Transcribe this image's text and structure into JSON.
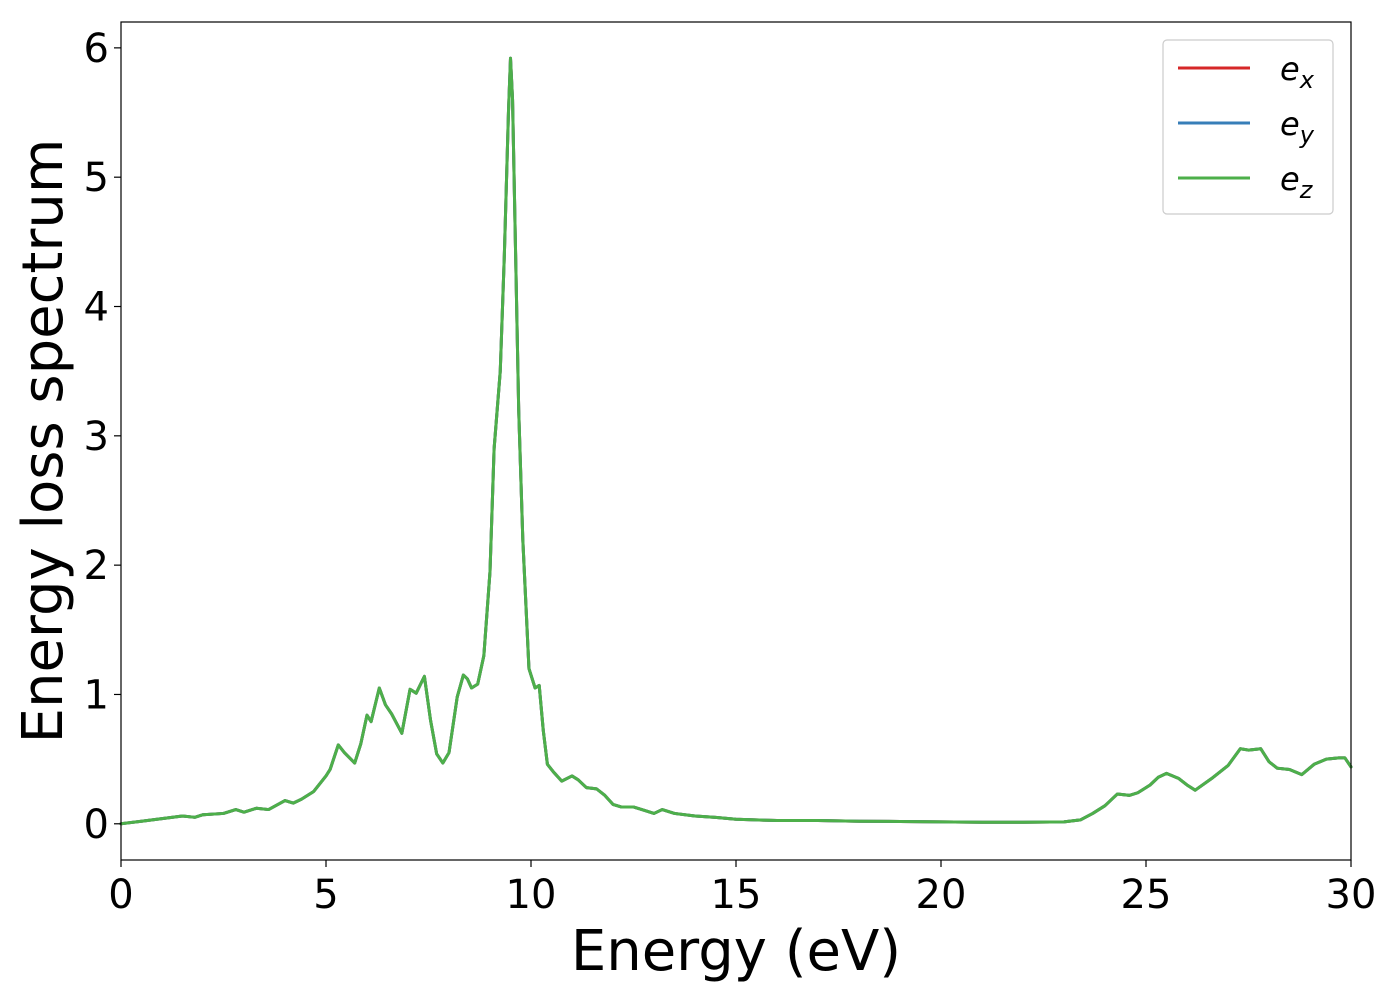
{
  "chart_data": {
    "type": "line",
    "xlabel": "Energy (eV)",
    "ylabel": "Energy loss spectrum",
    "xlim": [
      0,
      30
    ],
    "ylim": [
      -0.28,
      6.2
    ],
    "xticks": [
      0,
      5,
      10,
      15,
      20,
      25,
      30
    ],
    "xtick_labels": [
      "0",
      "5",
      "10",
      "15",
      "20",
      "25",
      "30"
    ],
    "yticks": [
      0,
      1,
      2,
      3,
      4,
      5,
      6
    ],
    "ytick_labels": [
      "0",
      "1",
      "2",
      "3",
      "4",
      "5",
      "6"
    ],
    "grid": false,
    "legend_position": "top-right",
    "x": [
      0,
      0.5,
      1.0,
      1.5,
      1.8,
      2.0,
      2.5,
      2.8,
      3.0,
      3.3,
      3.6,
      4.0,
      4.2,
      4.4,
      4.7,
      5.0,
      5.1,
      5.3,
      5.45,
      5.7,
      5.85,
      6.0,
      6.1,
      6.3,
      6.45,
      6.6,
      6.85,
      7.05,
      7.2,
      7.4,
      7.55,
      7.7,
      7.85,
      8.0,
      8.2,
      8.35,
      8.45,
      8.55,
      8.7,
      8.85,
      9.0,
      9.1,
      9.25,
      9.35,
      9.45,
      9.5,
      9.55,
      9.6,
      9.7,
      9.8,
      9.95,
      10.1,
      10.2,
      10.3,
      10.4,
      10.55,
      10.75,
      11.0,
      11.15,
      11.35,
      11.6,
      11.8,
      12.0,
      12.2,
      12.5,
      12.8,
      13.0,
      13.2,
      13.5,
      14.0,
      14.5,
      15.0,
      16.0,
      17.0,
      18.0,
      19.0,
      20.0,
      21.0,
      22.0,
      23.0,
      23.4,
      23.7,
      24.0,
      24.3,
      24.6,
      24.8,
      25.1,
      25.3,
      25.5,
      25.8,
      26.0,
      26.2,
      26.6,
      27.0,
      27.3,
      27.5,
      27.8,
      28.0,
      28.2,
      28.5,
      28.8,
      29.1,
      29.4,
      29.7,
      29.85,
      30.0
    ],
    "series": [
      {
        "name": "e_x",
        "color": "#d62728",
        "y": [
          0.0,
          0.02,
          0.04,
          0.06,
          0.05,
          0.07,
          0.08,
          0.11,
          0.09,
          0.12,
          0.11,
          0.18,
          0.16,
          0.19,
          0.25,
          0.37,
          0.42,
          0.61,
          0.55,
          0.47,
          0.62,
          0.84,
          0.79,
          1.05,
          0.92,
          0.85,
          0.7,
          1.04,
          1.01,
          1.14,
          0.8,
          0.54,
          0.47,
          0.55,
          0.98,
          1.15,
          1.12,
          1.05,
          1.08,
          1.3,
          1.95,
          2.9,
          3.5,
          4.4,
          5.5,
          5.92,
          5.6,
          4.8,
          3.2,
          2.2,
          1.2,
          1.05,
          1.07,
          0.72,
          0.46,
          0.4,
          0.33,
          0.37,
          0.34,
          0.28,
          0.27,
          0.22,
          0.15,
          0.13,
          0.13,
          0.1,
          0.08,
          0.11,
          0.08,
          0.06,
          0.05,
          0.035,
          0.025,
          0.025,
          0.02,
          0.018,
          0.015,
          0.012,
          0.012,
          0.015,
          0.03,
          0.08,
          0.14,
          0.23,
          0.22,
          0.24,
          0.3,
          0.36,
          0.39,
          0.35,
          0.3,
          0.26,
          0.35,
          0.45,
          0.58,
          0.57,
          0.58,
          0.48,
          0.43,
          0.42,
          0.38,
          0.46,
          0.5,
          0.51,
          0.51,
          0.44
        ]
      },
      {
        "name": "e_y",
        "color": "#377eb8",
        "y": [
          0.0,
          0.02,
          0.04,
          0.06,
          0.05,
          0.07,
          0.08,
          0.11,
          0.09,
          0.12,
          0.11,
          0.18,
          0.16,
          0.19,
          0.25,
          0.37,
          0.42,
          0.61,
          0.55,
          0.47,
          0.62,
          0.84,
          0.79,
          1.05,
          0.92,
          0.85,
          0.7,
          1.04,
          1.01,
          1.14,
          0.8,
          0.54,
          0.47,
          0.55,
          0.98,
          1.15,
          1.12,
          1.05,
          1.08,
          1.3,
          1.95,
          2.9,
          3.5,
          4.4,
          5.5,
          5.92,
          5.6,
          4.8,
          3.2,
          2.2,
          1.2,
          1.05,
          1.07,
          0.72,
          0.46,
          0.4,
          0.33,
          0.37,
          0.34,
          0.28,
          0.27,
          0.22,
          0.15,
          0.13,
          0.13,
          0.1,
          0.08,
          0.11,
          0.08,
          0.06,
          0.05,
          0.035,
          0.025,
          0.025,
          0.02,
          0.018,
          0.015,
          0.012,
          0.012,
          0.015,
          0.03,
          0.08,
          0.14,
          0.23,
          0.22,
          0.24,
          0.3,
          0.36,
          0.39,
          0.35,
          0.3,
          0.26,
          0.35,
          0.45,
          0.58,
          0.57,
          0.58,
          0.48,
          0.43,
          0.42,
          0.38,
          0.46,
          0.5,
          0.51,
          0.51,
          0.44
        ]
      },
      {
        "name": "e_z",
        "color": "#4daf4a",
        "y": [
          0.0,
          0.02,
          0.04,
          0.06,
          0.05,
          0.07,
          0.08,
          0.11,
          0.09,
          0.12,
          0.11,
          0.18,
          0.16,
          0.19,
          0.25,
          0.37,
          0.42,
          0.61,
          0.55,
          0.47,
          0.62,
          0.84,
          0.79,
          1.05,
          0.92,
          0.85,
          0.7,
          1.04,
          1.01,
          1.14,
          0.8,
          0.54,
          0.47,
          0.55,
          0.98,
          1.15,
          1.12,
          1.05,
          1.08,
          1.3,
          1.95,
          2.9,
          3.5,
          4.4,
          5.5,
          5.92,
          5.6,
          4.8,
          3.2,
          2.2,
          1.2,
          1.05,
          1.07,
          0.72,
          0.46,
          0.4,
          0.33,
          0.37,
          0.34,
          0.28,
          0.27,
          0.22,
          0.15,
          0.13,
          0.13,
          0.1,
          0.08,
          0.11,
          0.08,
          0.06,
          0.05,
          0.035,
          0.025,
          0.025,
          0.02,
          0.018,
          0.015,
          0.012,
          0.012,
          0.015,
          0.03,
          0.08,
          0.14,
          0.23,
          0.22,
          0.24,
          0.3,
          0.36,
          0.39,
          0.35,
          0.3,
          0.26,
          0.35,
          0.45,
          0.58,
          0.57,
          0.58,
          0.48,
          0.43,
          0.42,
          0.38,
          0.46,
          0.5,
          0.51,
          0.51,
          0.44
        ]
      }
    ],
    "legend": [
      {
        "base": "e",
        "sub": "x",
        "color": "#d62728"
      },
      {
        "base": "e",
        "sub": "y",
        "color": "#377eb8"
      },
      {
        "base": "e",
        "sub": "z",
        "color": "#4daf4a"
      }
    ]
  }
}
